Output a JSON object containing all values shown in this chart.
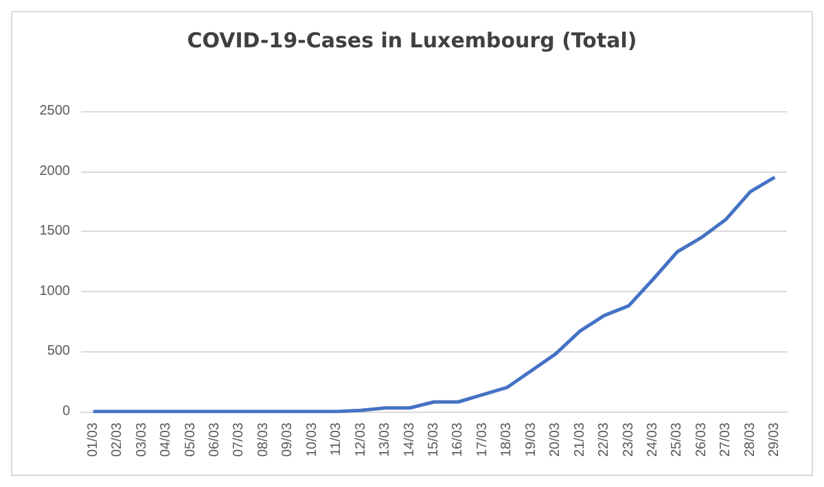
{
  "chart_data": {
    "type": "line",
    "title": "COVID-19-Cases in Luxembourg (Total)",
    "categories": [
      "01/03",
      "02/03",
      "03/03",
      "04/03",
      "05/03",
      "06/03",
      "07/03",
      "08/03",
      "09/03",
      "10/03",
      "11/03",
      "12/03",
      "13/03",
      "14/03",
      "15/03",
      "16/03",
      "17/03",
      "18/03",
      "19/03",
      "20/03",
      "21/03",
      "22/03",
      "23/03",
      "24/03",
      "25/03",
      "26/03",
      "27/03",
      "28/03",
      "29/03"
    ],
    "series": [
      {
        "color": "#4472c4",
        "values": [
          0,
          0,
          0,
          0,
          0,
          0,
          0,
          0,
          0,
          0,
          0,
          10,
          30,
          30,
          80,
          80,
          140,
          200,
          340,
          480,
          670,
          800,
          880,
          1100,
          1330,
          1450,
          1600,
          1830,
          1950
        ]
      }
    ],
    "ylim": [
      0,
      2500
    ],
    "yticks": [
      0,
      500,
      1000,
      1500,
      2000,
      2500
    ],
    "grid": "y",
    "marker": "none",
    "line_style": "solid"
  }
}
